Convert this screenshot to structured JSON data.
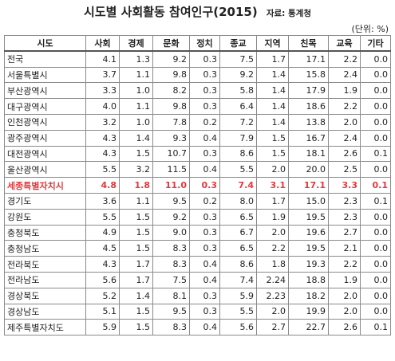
{
  "title": "시도별 사회활동 참여인구(2015)",
  "source": "자료: 통계청",
  "unit": "(단위:    %)",
  "columns": [
    "시도",
    "사회",
    "경제",
    "문화",
    "정치",
    "종교",
    "지역",
    "친목",
    "교육",
    "기타"
  ],
  "rows": [
    {
      "region": "전국",
      "values": [
        "4.1",
        "1.3",
        "9.2",
        "0.3",
        "7.5",
        "1.7",
        "17.1",
        "2.2",
        "0.0"
      ]
    },
    {
      "region": "서울특별시",
      "values": [
        "3.7",
        "1.1",
        "9.8",
        "0.3",
        "9.2",
        "1.4",
        "15.8",
        "2.4",
        "0.0"
      ]
    },
    {
      "region": "부산광역시",
      "values": [
        "3.3",
        "1.0",
        "8.2",
        "0.3",
        "5.8",
        "1.4",
        "17.9",
        "1.9",
        "0.0"
      ]
    },
    {
      "region": "대구광역시",
      "values": [
        "4.0",
        "1.1",
        "9.8",
        "0.3",
        "6.4",
        "1.4",
        "18.6",
        "2.2",
        "0.0"
      ]
    },
    {
      "region": "인천광역시",
      "values": [
        "3.2",
        "1.0",
        "7.8",
        "0.2",
        "7.2",
        "1.4",
        "13.8",
        "2.0",
        "0.0"
      ]
    },
    {
      "region": "광주광역시",
      "values": [
        "4.3",
        "1.4",
        "9.3",
        "0.4",
        "7.9",
        "1.5",
        "16.7",
        "2.4",
        "0.0"
      ]
    },
    {
      "region": "대전광역시",
      "values": [
        "4.3",
        "1.5",
        "10.7",
        "0.3",
        "8.6",
        "1.5",
        "18.1",
        "2.6",
        "0.1"
      ]
    },
    {
      "region": "울산광역시",
      "values": [
        "5.5",
        "3.2",
        "11.5",
        "0.4",
        "5.5",
        "2.0",
        "20.0",
        "2.5",
        "0.0"
      ]
    },
    {
      "region": "세종특별자치시",
      "values": [
        "4.8",
        "1.8",
        "11.0",
        "0.3",
        "7.4",
        "3.1",
        "17.1",
        "3.3",
        "0.1"
      ],
      "highlight": true
    },
    {
      "region": "경기도",
      "values": [
        "3.6",
        "1.1",
        "9.5",
        "0.2",
        "8.0",
        "1.7",
        "15.0",
        "2.3",
        "0.1"
      ]
    },
    {
      "region": "강원도",
      "values": [
        "5.5",
        "1.5",
        "9.2",
        "0.3",
        "6.5",
        "1.9",
        "19.5",
        "2.3",
        "0.0"
      ]
    },
    {
      "region": "충청북도",
      "values": [
        "4.9",
        "1.5",
        "9.0",
        "0.3",
        "6.7",
        "2.0",
        "19.6",
        "2.7",
        "0.0"
      ]
    },
    {
      "region": "충청남도",
      "values": [
        "4.5",
        "1.5",
        "8.3",
        "0.3",
        "6.5",
        "2.2",
        "19.5",
        "2.1",
        "0.0"
      ]
    },
    {
      "region": "전라북도",
      "values": [
        "4.3",
        "1.7",
        "8.3",
        "0.4",
        "8.6",
        "1.8",
        "19.3",
        "2.2",
        "0.0"
      ]
    },
    {
      "region": "전라남도",
      "values": [
        "5.6",
        "1.7",
        "7.5",
        "0.4",
        "7.4",
        "2.24",
        "18.8",
        "1.9",
        "0.0"
      ]
    },
    {
      "region": "경상북도",
      "values": [
        "5.2",
        "1.4",
        "8.1",
        "0.3",
        "5.9",
        "2.23",
        "18.2",
        "2.0",
        "0.0"
      ]
    },
    {
      "region": "경상남도",
      "values": [
        "5.1",
        "1.5",
        "9.5",
        "0.3",
        "5.5",
        "2.0",
        "19.9",
        "2.0",
        "0.0"
      ]
    },
    {
      "region": "제주특별자치도",
      "values": [
        "5.9",
        "1.5",
        "8.3",
        "0.4",
        "5.6",
        "2.7",
        "22.7",
        "2.6",
        "0.1"
      ]
    }
  ],
  "colors": {
    "highlight": "#e0393e",
    "border": "#8a8a8a"
  }
}
